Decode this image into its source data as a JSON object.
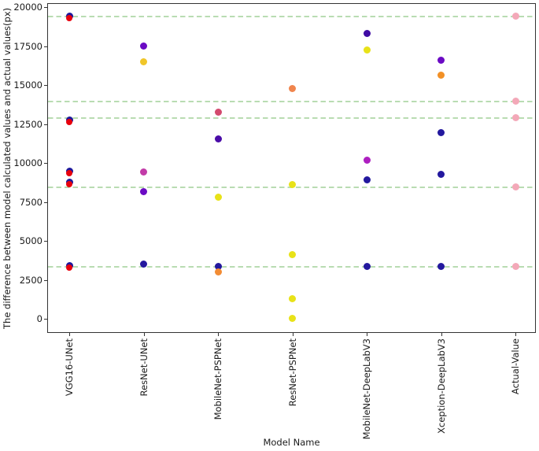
{
  "chart_data": {
    "type": "scatter",
    "title": "",
    "xlabel": "Model Name",
    "ylabel": "The difference between model calculated values and actual values(px)",
    "ylim": [
      0,
      20000
    ],
    "ytick_values": [
      0,
      2500,
      5000,
      7500,
      10000,
      12500,
      15000,
      17500,
      20000
    ],
    "ytick_labels": [
      "0",
      "2500",
      "5000",
      "7500",
      "10000",
      "12500",
      "15000",
      "17500",
      "20000"
    ],
    "categories": [
      "VGG16-UNet",
      "ResNet-UNet",
      "MobileNet-PSPNet",
      "ResNet-PSPNet",
      "MobileNet-DeepLabV3",
      "Xception-DeepLabV3",
      "Actual-Value"
    ],
    "grid": "off",
    "legend": "none",
    "reference_lines": {
      "style": "dashed",
      "color": "#b9dcb2",
      "meaning": "actual values",
      "values": [
        19400,
        13950,
        12900,
        8450,
        3350
      ]
    },
    "series": [
      {
        "name": "VGG16-UNet",
        "points": [
          {
            "value": 19350,
            "colors": [
              "#1d189c",
              "#e8000d"
            ]
          },
          {
            "value": 12700,
            "colors": [
              "#1d189c",
              "#e8000d"
            ]
          },
          {
            "value": 9400,
            "colors": [
              "#1d189c",
              "#e8000d"
            ]
          },
          {
            "value": 8700,
            "colors": [
              "#1d189c",
              "#e8000d"
            ]
          },
          {
            "value": 3350,
            "colors": [
              "#1d189c",
              "#e8000d"
            ]
          }
        ]
      },
      {
        "name": "ResNet-UNet",
        "points": [
          {
            "value": 17500,
            "colors": [
              "#6b0ac4"
            ]
          },
          {
            "value": 16500,
            "colors": [
              "#f0c629"
            ]
          },
          {
            "value": 9400,
            "colors": [
              "#c23ba8"
            ]
          },
          {
            "value": 8150,
            "colors": [
              "#6b0ac4"
            ]
          },
          {
            "value": 3500,
            "colors": [
              "#23189e"
            ]
          }
        ]
      },
      {
        "name": "MobileNet-PSPNet",
        "points": [
          {
            "value": 13250,
            "colors": [
              "#d34a6e"
            ]
          },
          {
            "value": 11550,
            "colors": [
              "#4a0ca8"
            ]
          },
          {
            "value": 7800,
            "colors": [
              "#e8e218"
            ]
          },
          {
            "value": 3350,
            "colors": [
              "#23189e"
            ]
          },
          {
            "value": 3000,
            "colors": [
              "#f28c35"
            ]
          }
        ]
      },
      {
        "name": "ResNet-PSPNet",
        "points": [
          {
            "value": 14750,
            "colors": [
              "#f0854d"
            ]
          },
          {
            "value": 8600,
            "colors": [
              "#e8e218"
            ]
          },
          {
            "value": 4100,
            "colors": [
              "#e8e218"
            ]
          },
          {
            "value": 1300,
            "colors": [
              "#e8e218"
            ]
          },
          {
            "value": 30,
            "colors": [
              "#e8e218"
            ]
          }
        ]
      },
      {
        "name": "MobileNet-DeepLabV3",
        "points": [
          {
            "value": 18300,
            "colors": [
              "#3f0ba4"
            ]
          },
          {
            "value": 17250,
            "colors": [
              "#e8e218"
            ]
          },
          {
            "value": 10200,
            "colors": [
              "#ad1fc0"
            ]
          },
          {
            "value": 8900,
            "colors": [
              "#23189e"
            ]
          },
          {
            "value": 3350,
            "colors": [
              "#23189e"
            ]
          }
        ]
      },
      {
        "name": "Xception-DeepLabV3",
        "points": [
          {
            "value": 16600,
            "colors": [
              "#6b0ac4"
            ]
          },
          {
            "value": 15650,
            "colors": [
              "#f29026"
            ]
          },
          {
            "value": 11950,
            "colors": [
              "#23189e"
            ]
          },
          {
            "value": 9250,
            "colors": [
              "#23189e"
            ]
          },
          {
            "value": 3350,
            "colors": [
              "#23189e"
            ]
          }
        ]
      },
      {
        "name": "Actual-Value",
        "points": [
          {
            "value": 19400,
            "colors": [
              "#f3a8b8"
            ]
          },
          {
            "value": 13950,
            "colors": [
              "#f3a8b8"
            ]
          },
          {
            "value": 12900,
            "colors": [
              "#f3a8b8"
            ]
          },
          {
            "value": 8450,
            "colors": [
              "#f3a8b8"
            ]
          },
          {
            "value": 3350,
            "colors": [
              "#f3a8b8"
            ]
          }
        ]
      }
    ]
  }
}
